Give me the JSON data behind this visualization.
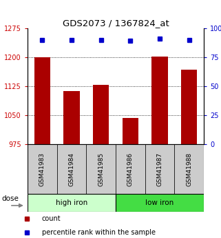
{
  "title": "GDS2073 / 1367824_at",
  "categories": [
    "GSM41983",
    "GSM41984",
    "GSM41985",
    "GSM41986",
    "GSM41987",
    "GSM41988"
  ],
  "bar_values": [
    1200,
    1113,
    1128,
    1043,
    1202,
    1168
  ],
  "percentile_values": [
    90,
    90,
    90,
    89,
    91,
    90
  ],
  "ylim": [
    975,
    1275
  ],
  "ylim_right": [
    0,
    100
  ],
  "yticks_left": [
    975,
    1050,
    1125,
    1200,
    1275
  ],
  "yticks_right": [
    0,
    25,
    50,
    75,
    100
  ],
  "bar_color": "#aa0000",
  "dot_color": "#0000cc",
  "high_iron_color": "#ccffcc",
  "low_iron_color": "#44dd44",
  "sample_label_bg": "#cccccc",
  "dose_label": "dose",
  "legend_count_label": "count",
  "legend_percentile_label": "percentile rank within the sample",
  "title_fontsize": 9.5,
  "tick_fontsize": 7,
  "label_fontsize": 6.5,
  "group_fontsize": 7.5,
  "legend_fontsize": 7,
  "dose_fontsize": 7.5
}
